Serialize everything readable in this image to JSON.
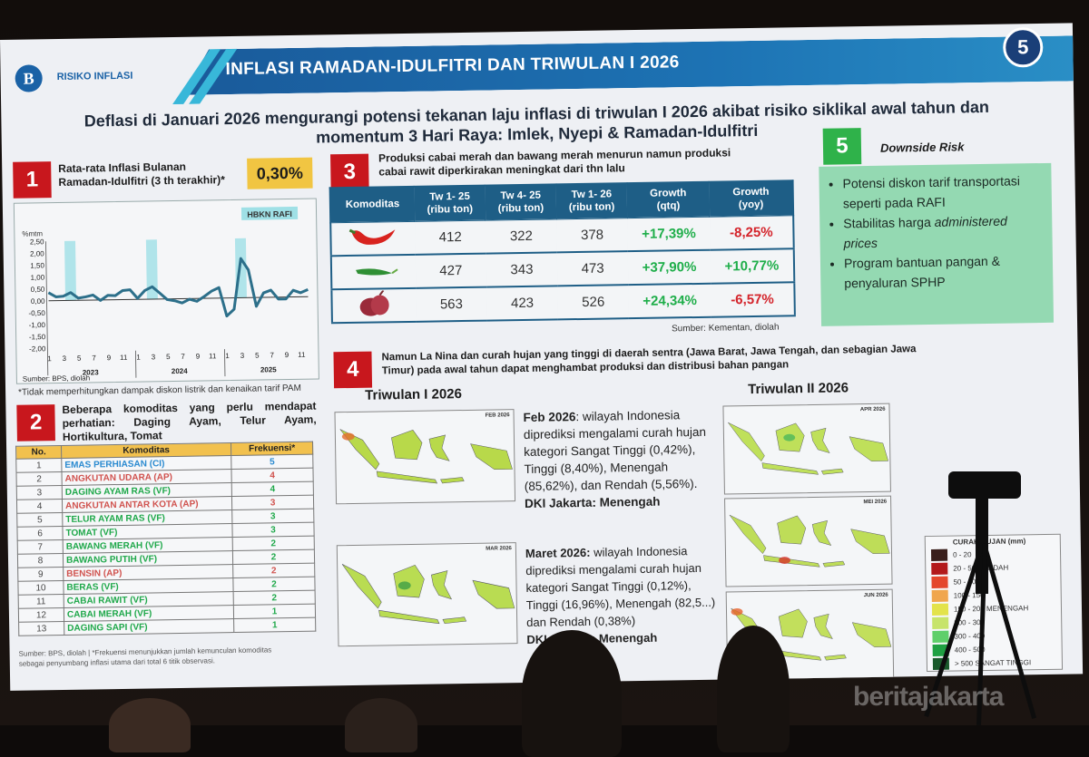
{
  "header": {
    "logo_text": "B",
    "section_label": "RISIKO INFLASI",
    "title": "INFLASI RAMADAN-IDULFITRI DAN TRIWULAN I 2026",
    "page_number": "5"
  },
  "subtitle": {
    "line1": "Deflasi di Januari 2026 mengurangi potensi tekanan laju inflasi di triwulan I 2026 akibat risiko siklikal awal tahun dan",
    "line2": "momentum 3 Hari Raya: Imlek, Nyepi & Ramadan-Idulfitri"
  },
  "panel1": {
    "badge": "1",
    "title_line1": "Rata-rata Inflasi Bulanan",
    "title_line2": "Ramadan-Idulfitri (3 th terakhir)*",
    "kpi": "0,30%",
    "legend": "HBKN RAFI",
    "y_unit": "%mtm",
    "source": "Sumber: BPS, diolah",
    "footnote": "*Tidak memperhitungkan dampak diskon listrik dan kenaikan tarif PAM"
  },
  "chart_data": {
    "type": "line",
    "title": "Rata-rata Inflasi Bulanan Ramadan-Idulfitri (3 th terakhir)",
    "ylabel": "%mtm",
    "ylim": [
      -2.0,
      2.5
    ],
    "yticks": [
      "2,50",
      "2,00",
      "1,50",
      "1,00",
      "0,50",
      "0,00",
      "-0,50",
      "-1,00",
      "-1,50",
      "-2,00"
    ],
    "x_ticks": [
      "1",
      "3",
      "5",
      "7",
      "9",
      "11",
      "1",
      "3",
      "5",
      "7",
      "9",
      "11",
      "1",
      "3",
      "5",
      "7",
      "9",
      "11"
    ],
    "x_groups": [
      "2023",
      "2024",
      "2025"
    ],
    "legend": [
      "HBKN RAFI"
    ],
    "highlight_months": [
      "2023-04",
      "2024-03",
      "2025-03"
    ],
    "series": [
      {
        "name": "Inflasi %mtm",
        "x": [
          "2023-01",
          "2023-02",
          "2023-03",
          "2023-04",
          "2023-05",
          "2023-06",
          "2023-07",
          "2023-08",
          "2023-09",
          "2023-10",
          "2023-11",
          "2023-12",
          "2024-01",
          "2024-02",
          "2024-03",
          "2024-04",
          "2024-05",
          "2024-06",
          "2024-07",
          "2024-08",
          "2024-09",
          "2024-10",
          "2024-11",
          "2024-12",
          "2025-01",
          "2025-02",
          "2025-03",
          "2025-04",
          "2025-05",
          "2025-06",
          "2025-07",
          "2025-08",
          "2025-09",
          "2025-10",
          "2025-11",
          "2025-12"
        ],
        "values": [
          0.34,
          0.16,
          0.18,
          0.33,
          0.09,
          0.14,
          0.21,
          -0.02,
          0.19,
          0.17,
          0.38,
          0.41,
          0.04,
          0.37,
          0.52,
          0.25,
          -0.03,
          -0.08,
          -0.18,
          -0.03,
          -0.12,
          0.08,
          0.3,
          0.44,
          -0.76,
          -0.48,
          1.65,
          1.17,
          -0.37,
          0.19,
          0.3,
          -0.08,
          -0.08,
          0.28,
          0.17,
          0.3
        ]
      }
    ]
  },
  "panel2": {
    "badge": "2",
    "title": "Beberapa komoditas yang perlu mendapat perhatian: Daging Ayam, Telur Ayam, Hortikultura, Tomat",
    "columns": [
      "No.",
      "Komoditas",
      "Frekuensi*"
    ],
    "rows": [
      {
        "no": "1",
        "name": "EMAS PERHIASAN (CI)",
        "freq": "5",
        "color": "#2a8ad0"
      },
      {
        "no": "2",
        "name": "ANGKUTAN UDARA (AP)",
        "freq": "4",
        "color": "#d0524e"
      },
      {
        "no": "3",
        "name": "DAGING AYAM RAS (VF)",
        "freq": "4",
        "color": "#1fa84a"
      },
      {
        "no": "4",
        "name": "ANGKUTAN ANTAR KOTA (AP)",
        "freq": "3",
        "color": "#d0524e"
      },
      {
        "no": "5",
        "name": "TELUR AYAM RAS (VF)",
        "freq": "3",
        "color": "#1fa84a"
      },
      {
        "no": "6",
        "name": "TOMAT (VF)",
        "freq": "3",
        "color": "#1fa84a"
      },
      {
        "no": "7",
        "name": "BAWANG MERAH (VF)",
        "freq": "2",
        "color": "#1fa84a"
      },
      {
        "no": "8",
        "name": "BAWANG PUTIH (VF)",
        "freq": "2",
        "color": "#1fa84a"
      },
      {
        "no": "9",
        "name": "BENSIN (AP)",
        "freq": "2",
        "color": "#d0524e"
      },
      {
        "no": "10",
        "name": "BERAS (VF)",
        "freq": "2",
        "color": "#1fa84a"
      },
      {
        "no": "11",
        "name": "CABAI RAWIT (VF)",
        "freq": "2",
        "color": "#1fa84a"
      },
      {
        "no": "12",
        "name": "CABAI MERAH (VF)",
        "freq": "1",
        "color": "#1fa84a"
      },
      {
        "no": "13",
        "name": "DAGING SAPI (VF)",
        "freq": "1",
        "color": "#1fa84a"
      }
    ],
    "note_line1": "Sumber: BPS, diolah | *Frekuensi menunjukkan jumlah kemunculan komoditas",
    "note_line2": "sebagai penyumbang inflasi utama dari total 6 titik observasi."
  },
  "panel3": {
    "badge": "3",
    "title_line1": "Produksi cabai merah dan bawang merah menurun namun produksi",
    "title_line2": "cabai rawit diperkirakan meningkat dari thn lalu",
    "columns": [
      {
        "l1": "Komoditas",
        "l2": ""
      },
      {
        "l1": "Tw 1- 25",
        "l2": "(ribu ton)"
      },
      {
        "l1": "Tw 4- 25",
        "l2": "(ribu ton)"
      },
      {
        "l1": "Tw 1- 26",
        "l2": "(ribu ton)"
      },
      {
        "l1": "Growth",
        "l2": "(qtq)"
      },
      {
        "l1": "Growth",
        "l2": "(yoy)"
      }
    ],
    "rows": [
      {
        "icon": "red-chili-icon",
        "tw1_25": "412",
        "tw4_25": "322",
        "tw1_26": "378",
        "qtq": "+17,39%",
        "yoy": "-8,25%"
      },
      {
        "icon": "green-chili-icon",
        "tw1_25": "427",
        "tw4_25": "343",
        "tw1_26": "473",
        "qtq": "+37,90%",
        "yoy": "+10,77%"
      },
      {
        "icon": "shallot-icon",
        "tw1_25": "563",
        "tw4_25": "423",
        "tw1_26": "526",
        "qtq": "+24,34%",
        "yoy": "-6,57%"
      }
    ],
    "source": "Sumber: Kementan, diolah"
  },
  "panel4": {
    "badge": "4",
    "title_line1": "Namun La Nina dan curah hujan yang tinggi di daerah sentra (Jawa Barat, Jawa Tengah, dan sebagian Jawa",
    "title_line2": "Timur) pada awal tahun dapat menghambat produksi dan distribusi bahan pangan",
    "q1_label": "Triwulan I 2026",
    "q2_label": "Triwulan II 2026",
    "maps": [
      {
        "label": "FEB 2026"
      },
      {
        "label": "MAR 2026"
      },
      {
        "label": "APR 2026"
      },
      {
        "label": "MEI 2026"
      },
      {
        "label": "JUN 2026"
      }
    ],
    "feb_desc": {
      "bold": "Feb 2026",
      "text": ": wilayah Indonesia diprediksi mengalami curah hujan kategori Sangat Tinggi (0,42%), Tinggi (8,40%), Menengah (85,62%), dan Rendah (5,56%).",
      "dki": "DKI Jakarta: Menengah"
    },
    "mar_desc": {
      "bold": "Maret 2026:",
      "text": " wilayah Indonesia diprediksi mengalami curah hujan kategori Sangat Tinggi (0,12%), Tinggi (16,96%), Menengah (82,5...) dan Rendah (0,38%)",
      "dki": "DKI Jakarta: Menengah"
    },
    "legend_title": "CURAH HUJAN (mm)",
    "legend_items": [
      {
        "color": "#3a1f1c",
        "label": "0 - 20"
      },
      {
        "color": "#b3191b",
        "label": "20 - 50  RENDAH"
      },
      {
        "color": "#e4472c",
        "label": "50 - 100"
      },
      {
        "color": "#f0a64e",
        "label": "100 - 150"
      },
      {
        "color": "#e3e34b",
        "label": "150 - 200  MENENGAH"
      },
      {
        "color": "#c7e46a",
        "label": "200 - 300"
      },
      {
        "color": "#5fcf6a",
        "label": "300 - 400"
      },
      {
        "color": "#1fa042",
        "label": "400 - 500"
      },
      {
        "color": "#1a5a2c",
        "label": "> 500  SANGAT TINGGI"
      }
    ]
  },
  "panel5": {
    "badge": "5",
    "title": "Downside Risk",
    "items": [
      {
        "text": "Potensi diskon tarif transportasi seperti pada RAFI"
      },
      {
        "text": "Stabilitas harga ",
        "italic": "administered prices"
      },
      {
        "text": "Program bantuan pangan & penyaluran SPHP"
      }
    ]
  },
  "watermark": "beritajakarta",
  "colors": {
    "header_blue": "#1d73b4",
    "badge_red": "#c8171d",
    "badge_green": "#2fb24a",
    "table_blue": "#1e5e86",
    "kpi_yellow": "#f1c542",
    "growth_positive": "#1fae4a",
    "growth_negative": "#d4232a",
    "chart_line": "#2c6f8a",
    "hbkn_band": "#9fe0e6"
  }
}
